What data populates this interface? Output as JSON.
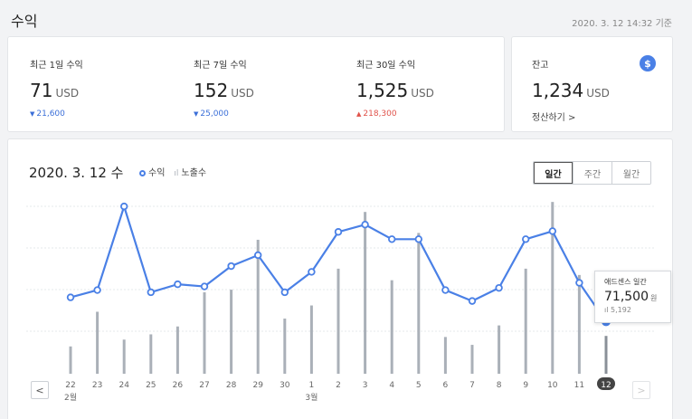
{
  "header": {
    "title": "수익",
    "timestamp": "2020. 3. 12 14:32 기준"
  },
  "summary": [
    {
      "label": "최근 1일 수익",
      "value": "71",
      "unit": "USD",
      "delta": "21,600",
      "direction": "down"
    },
    {
      "label": "최근 7일 수익",
      "value": "152",
      "unit": "USD",
      "delta": "25,000",
      "direction": "down"
    },
    {
      "label": "최근 30일 수익",
      "value": "1,525",
      "unit": "USD",
      "delta": "218,300",
      "direction": "up"
    }
  ],
  "balance": {
    "label": "잔고",
    "value": "1,234",
    "unit": "USD",
    "link": "정산하기 >",
    "icon": "dollar-coin-icon",
    "icon_glyph": "$"
  },
  "chart_header": {
    "date": "2020. 3. 12 수",
    "legend": [
      "수익",
      "노출수"
    ],
    "tabs": [
      {
        "label": "일간",
        "active": true
      },
      {
        "label": "주간",
        "active": false
      },
      {
        "label": "월간",
        "active": false
      }
    ]
  },
  "chart_data": {
    "type": "line",
    "categories": [
      "22",
      "23",
      "24",
      "25",
      "26",
      "27",
      "28",
      "29",
      "30",
      "1",
      "2",
      "3",
      "4",
      "5",
      "6",
      "7",
      "8",
      "9",
      "10",
      "11",
      "12"
    ],
    "month_labels": [
      {
        "index": 0,
        "label": "2월"
      },
      {
        "index": 9,
        "label": "3월"
      }
    ],
    "selected_index": 20,
    "series": [
      {
        "name": "수익",
        "kind": "line",
        "color": "#4a80e6",
        "values": [
          105,
          115,
          230,
          112,
          123,
          120,
          148,
          163,
          112,
          140,
          195,
          205,
          185,
          185,
          115,
          100,
          118,
          185,
          196,
          125,
          71.5
        ]
      },
      {
        "name": "노출수",
        "kind": "bar",
        "color": "#aab0b8",
        "values": [
          52,
          118,
          65,
          75,
          90,
          155,
          160,
          255,
          105,
          130,
          200,
          308,
          178,
          268,
          70,
          55,
          92,
          200,
          327,
          188,
          72
        ]
      }
    ],
    "line_ylim": [
      0,
      260
    ],
    "bar_ylim": [
      0,
      360
    ],
    "grid": true
  },
  "tooltip": {
    "title": "애드센스 일간",
    "value": "71,500",
    "unit": "원",
    "sub": "5,192"
  },
  "nav": {
    "prev": "<",
    "next": ">"
  }
}
